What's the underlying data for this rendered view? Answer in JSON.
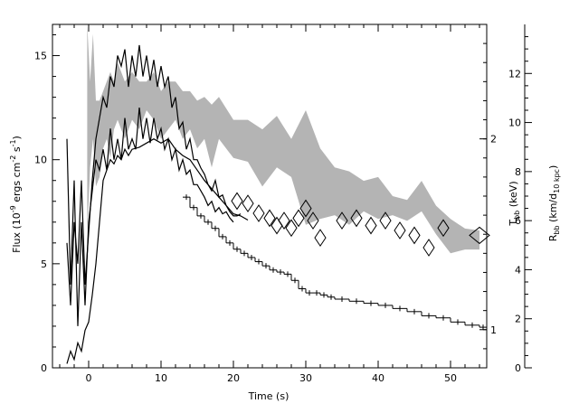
{
  "chart_data": {
    "type": "line",
    "xlabel": "Time (s)",
    "ylabel_left": [
      "Flux (10",
      "-9",
      " ergs cm",
      "-2",
      " s",
      "-1",
      ")"
    ],
    "ylabel_temp": [
      "T",
      "bb",
      " (keV)"
    ],
    "ylabel_radius": [
      "R",
      "bb",
      " (km/d",
      "10 kpc",
      ")"
    ],
    "xlim": [
      -5,
      55
    ],
    "flux_ylim": [
      0,
      16.5
    ],
    "temp_ylim": [
      0.8,
      2.6
    ],
    "radius_ylim": [
      0,
      14
    ],
    "x_ticks": [
      0,
      10,
      20,
      30,
      40,
      50
    ],
    "flux_ticks": [
      0,
      5,
      10,
      15
    ],
    "temp_ticks": [
      1,
      2
    ],
    "radius_ticks": [
      0,
      2,
      4,
      6,
      8,
      10,
      12
    ],
    "flux_steps": {
      "x": [
        13,
        14,
        15,
        16,
        17,
        18,
        19,
        20,
        21,
        22,
        23,
        24,
        25,
        26,
        27,
        28,
        29,
        30,
        31,
        32,
        33,
        34,
        36,
        38,
        40,
        42,
        44,
        46,
        48,
        50,
        52,
        54
      ],
      "y": [
        8.2,
        7.7,
        7.3,
        7.0,
        6.7,
        6.3,
        6.0,
        5.7,
        5.5,
        5.3,
        5.1,
        4.9,
        4.7,
        4.6,
        4.5,
        4.2,
        3.8,
        3.6,
        3.6,
        3.5,
        3.4,
        3.3,
        3.2,
        3.1,
        3.0,
        2.85,
        2.7,
        2.5,
        2.4,
        2.2,
        2.05,
        1.95
      ]
    },
    "radius_diamonds": {
      "x": [
        20.5,
        22,
        23.5,
        25,
        26,
        27,
        28,
        29,
        30,
        31,
        32,
        35,
        37,
        39,
        41,
        43,
        45,
        47,
        49,
        54
      ],
      "y": [
        6.8,
        6.7,
        6.3,
        6.1,
        5.8,
        6.0,
        5.7,
        6.1,
        6.5,
        6.0,
        5.3,
        6.0,
        6.1,
        5.8,
        6.0,
        5.6,
        5.4,
        4.9,
        5.7,
        5.4
      ]
    },
    "temperature_band": {
      "x": [
        -0.2,
        0.2,
        0.6,
        1,
        1.5,
        2,
        2.5,
        3,
        3.5,
        4,
        5,
        6,
        7,
        8,
        9,
        10,
        11,
        12,
        13,
        14,
        15,
        16,
        17,
        18,
        20,
        22,
        24,
        26,
        28,
        30,
        32,
        34,
        36,
        38,
        40,
        42,
        44,
        46,
        48,
        50,
        52,
        54
      ],
      "lo": [
        1.5,
        1.85,
        2.0,
        1.75,
        1.8,
        1.95,
        2.0,
        1.9,
        2.05,
        2.1,
        2.0,
        2.1,
        2.05,
        2.15,
        2.1,
        2.0,
        2.05,
        2.1,
        2.0,
        2.05,
        1.95,
        2.0,
        1.85,
        2.0,
        1.9,
        1.88,
        1.75,
        1.85,
        1.8,
        1.55,
        1.58,
        1.6,
        1.55,
        1.62,
        1.58,
        1.6,
        1.57,
        1.62,
        1.5,
        1.4,
        1.42,
        1.42
      ],
      "hi": [
        2.6,
        2.3,
        2.55,
        2.2,
        2.2,
        2.25,
        2.3,
        2.35,
        2.3,
        2.4,
        2.3,
        2.35,
        2.3,
        2.3,
        2.35,
        2.25,
        2.3,
        2.3,
        2.25,
        2.25,
        2.2,
        2.22,
        2.18,
        2.22,
        2.1,
        2.1,
        2.05,
        2.12,
        2.0,
        2.15,
        1.95,
        1.85,
        1.83,
        1.78,
        1.8,
        1.7,
        1.68,
        1.78,
        1.65,
        1.58,
        1.53,
        1.52
      ]
    },
    "flux_curve_a": {
      "x": [
        -3,
        -2.5,
        -2,
        -1.5,
        -1,
        -0.5,
        0,
        0.5,
        1,
        1.5,
        2,
        2.5,
        3,
        3.5,
        4,
        4.5,
        5,
        5.5,
        6,
        6.5,
        7,
        7.5,
        8,
        8.5,
        9,
        9.5,
        10,
        10.5,
        11,
        11.5,
        12,
        12.5,
        13,
        13.5,
        14,
        14.5,
        15,
        15.5,
        16,
        16.5,
        17,
        17.5,
        18,
        18.5,
        19,
        19.5,
        20,
        20.5,
        21
      ],
      "y": [
        6,
        3,
        7,
        5,
        9,
        4,
        6.5,
        9,
        11,
        12,
        13,
        12.5,
        14,
        13.5,
        15,
        14.5,
        15.3,
        13.5,
        15,
        14,
        15.5,
        14,
        15,
        13.8,
        14.8,
        13.5,
        14.5,
        13.5,
        14,
        12.5,
        13,
        11.5,
        11.8,
        10.5,
        11,
        10,
        10,
        9.6,
        9.3,
        8.8,
        8.5,
        9,
        8.2,
        8.3,
        7.8,
        7.5,
        7.3,
        7.3,
        7.4
      ]
    },
    "flux_curve_b": {
      "x": [
        -3,
        -2.5,
        -2,
        -1.5,
        -1,
        -0.5,
        0,
        0.5,
        1,
        1.5,
        2,
        2.5,
        3,
        3.5,
        4,
        4.5,
        5,
        5.5,
        6,
        6.5,
        7,
        7.5,
        8,
        8.5,
        9,
        9.5,
        10,
        10.5,
        11,
        11.5,
        12,
        12.5,
        13,
        13.5,
        14,
        14.5,
        15,
        15.5,
        16,
        16.5,
        17,
        17.5,
        18,
        18.5,
        19,
        19.5,
        20
      ],
      "y": [
        11,
        4,
        9,
        2,
        7,
        3,
        7,
        8.5,
        10,
        9.5,
        10.5,
        9.5,
        11.5,
        10,
        11,
        10,
        12,
        10.5,
        11,
        10.5,
        12.5,
        11,
        12,
        10.8,
        12,
        11,
        11.5,
        10.5,
        11,
        10,
        10.5,
        9.5,
        10,
        9.3,
        9.5,
        8.8,
        8.8,
        8.5,
        8.2,
        7.8,
        8,
        7.5,
        7.7,
        7.4,
        7.5,
        7.2,
        7
      ]
    },
    "flux_curve_c": {
      "x": [
        -3,
        -2.5,
        -2,
        -1.5,
        -1,
        -0.5,
        0,
        0.5,
        1,
        1.5,
        2,
        2.5,
        3,
        3.5,
        4,
        4.5,
        5,
        5.5,
        6,
        7,
        8,
        9,
        10,
        11,
        12,
        13,
        14,
        15,
        16,
        17,
        18,
        19,
        20,
        21,
        22
      ],
      "y": [
        0.2,
        0.8,
        0.4,
        1.2,
        0.8,
        1.8,
        2.2,
        3.5,
        5,
        7,
        9,
        9.5,
        10,
        9.8,
        10.2,
        10,
        10.5,
        10.2,
        10.5,
        10.6,
        10.8,
        11,
        10.8,
        11,
        10.5,
        10.2,
        10,
        9.5,
        9,
        8.6,
        8.2,
        7.8,
        7.4,
        7.3,
        7.1
      ]
    }
  }
}
